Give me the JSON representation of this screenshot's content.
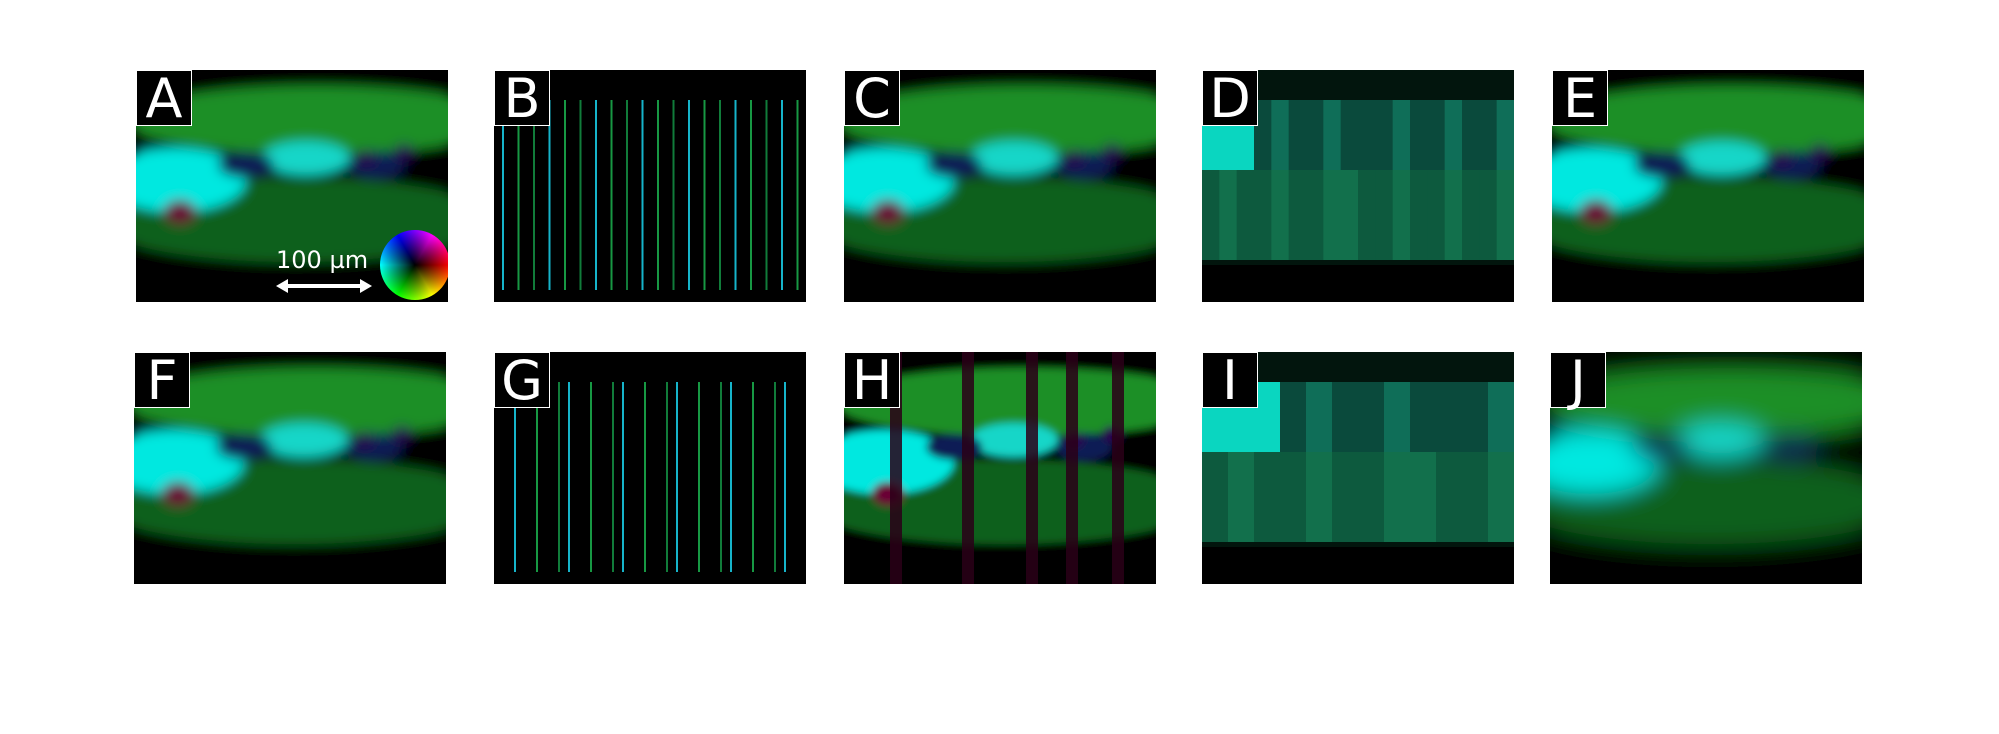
{
  "panels": [
    {
      "label": "A",
      "variant": "smooth",
      "dots": true,
      "scale": true
    },
    {
      "label": "B",
      "variant": "lines-dense"
    },
    {
      "label": "C",
      "variant": "smooth",
      "dots": true
    },
    {
      "label": "D",
      "variant": "blocky"
    },
    {
      "label": "E",
      "variant": "smooth",
      "dots": true
    },
    {
      "label": "F",
      "variant": "smooth",
      "dots": true
    },
    {
      "label": "G",
      "variant": "lines-sparse"
    },
    {
      "label": "H",
      "variant": "striped"
    },
    {
      "label": "I",
      "variant": "blocky-coarse"
    },
    {
      "label": "J",
      "variant": "blurred"
    }
  ],
  "scale_bar": {
    "text": "100 µm"
  },
  "colors": {
    "green": "#1a8a2a",
    "cyan": "#00e6e6",
    "magenta": "#8a0040",
    "teal": "#0e5a45"
  }
}
